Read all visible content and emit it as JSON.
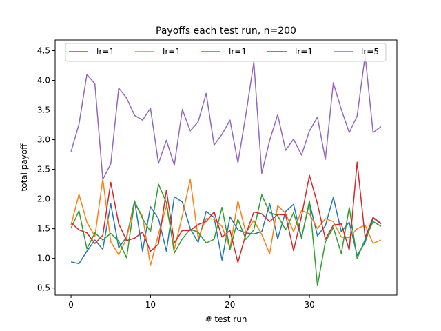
{
  "chart_data": {
    "type": "line",
    "title": "Payoffs each test run, n=200",
    "xlabel": "# test run",
    "ylabel": "total payoff",
    "xlim": [
      -2.0,
      41.0
    ],
    "ylim": [
      0.38,
      4.68
    ],
    "xticks": [
      0,
      10,
      20,
      30
    ],
    "yticks": [
      0.5,
      1.0,
      1.5,
      2.0,
      2.5,
      3.0,
      3.5,
      4.0,
      4.5
    ],
    "ytick_labels": [
      "0.5",
      "1.0",
      "1.5",
      "2.0",
      "2.5",
      "3.0",
      "3.5",
      "4.0",
      "4.5"
    ],
    "grid": false,
    "legend": "top, horizontal",
    "x": [
      0,
      1,
      2,
      3,
      4,
      5,
      6,
      7,
      8,
      9,
      10,
      11,
      12,
      13,
      14,
      15,
      16,
      17,
      18,
      19,
      20,
      21,
      22,
      23,
      24,
      25,
      26,
      27,
      28,
      29,
      30,
      31,
      32,
      33,
      34,
      35,
      36,
      37,
      38,
      39
    ],
    "series": [
      {
        "name": "lr=1",
        "color": "#1f77b4",
        "values": [
          0.94,
          0.91,
          1.12,
          1.31,
          1.15,
          1.92,
          1.18,
          1.36,
          1.97,
          1.12,
          1.87,
          1.67,
          1.12,
          2.04,
          1.95,
          1.5,
          1.27,
          1.79,
          1.69,
          0.97,
          1.7,
          1.48,
          1.43,
          1.41,
          1.45,
          1.92,
          1.33,
          1.79,
          1.91,
          1.35,
          1.94,
          1.38,
          1.55,
          2.03,
          1.45,
          1.61,
          1.05,
          1.27,
          1.68,
          1.58
        ]
      },
      {
        "name": "lr=1",
        "color": "#ff7f0e",
        "values": [
          1.56,
          2.08,
          1.61,
          1.37,
          2.34,
          1.28,
          1.06,
          1.34,
          1.93,
          1.71,
          0.88,
          1.41,
          1.88,
          1.15,
          1.72,
          2.33,
          1.34,
          1.67,
          1.66,
          1.54,
          1.17,
          1.97,
          1.43,
          1.64,
          1.4,
          1.08,
          1.89,
          1.76,
          1.45,
          1.81,
          1.75,
          1.5,
          1.67,
          1.62,
          1.36,
          1.35,
          1.5,
          1.56,
          1.25,
          1.31
        ]
      },
      {
        "name": "lr=1",
        "color": "#2ca02c",
        "values": [
          1.51,
          1.8,
          1.16,
          1.43,
          1.31,
          1.42,
          1.29,
          1.01,
          1.96,
          1.67,
          1.45,
          2.25,
          1.94,
          1.09,
          1.33,
          1.49,
          1.44,
          1.26,
          1.32,
          1.86,
          1.15,
          1.66,
          1.32,
          1.48,
          2.07,
          1.77,
          1.72,
          1.48,
          1.77,
          1.34,
          1.97,
          0.54,
          1.28,
          1.52,
          1.08,
          1.86,
          1.0,
          1.32,
          1.62,
          1.54
        ]
      },
      {
        "name": "lr=1",
        "color": "#d62728",
        "values": [
          1.6,
          1.48,
          1.43,
          1.25,
          1.39,
          2.28,
          1.58,
          1.3,
          1.34,
          1.44,
          1.12,
          1.24,
          2.15,
          1.26,
          1.47,
          1.47,
          1.57,
          1.62,
          1.78,
          1.36,
          1.47,
          0.93,
          1.41,
          1.78,
          1.75,
          1.62,
          1.74,
          1.73,
          1.13,
          1.71,
          2.4,
          1.92,
          1.32,
          1.56,
          1.58,
          1.14,
          2.62,
          1.35,
          1.69,
          1.59
        ]
      },
      {
        "name": "lr=5",
        "color": "#9467bd",
        "values": [
          2.8,
          3.26,
          4.1,
          3.94,
          2.33,
          2.59,
          3.87,
          3.7,
          3.41,
          3.33,
          3.53,
          2.6,
          2.99,
          2.57,
          3.51,
          3.15,
          3.3,
          3.78,
          2.91,
          3.09,
          3.33,
          2.61,
          3.42,
          4.31,
          2.43,
          2.99,
          3.42,
          2.82,
          3.01,
          2.74,
          3.15,
          3.38,
          2.67,
          3.96,
          3.51,
          3.12,
          3.4,
          4.42,
          3.12,
          3.22
        ]
      }
    ]
  }
}
